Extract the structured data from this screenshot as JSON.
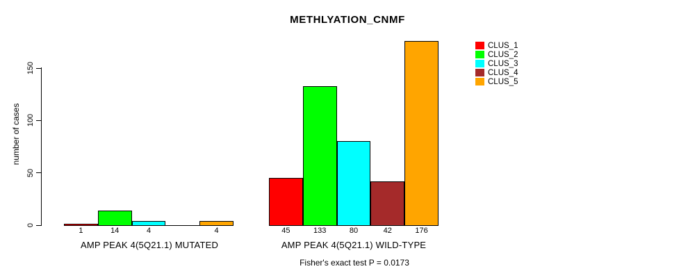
{
  "title": "METHLYATION_CNMF",
  "y_axis": {
    "label": "number of cases",
    "tick_labels": [
      "0",
      "50",
      "100",
      "150"
    ]
  },
  "legend": {
    "entries": [
      {
        "label": "CLUS_1",
        "color": "#FF0000"
      },
      {
        "label": "CLUS_2",
        "color": "#00FF00"
      },
      {
        "label": "CLUS_3",
        "color": "#00FFFF"
      },
      {
        "label": "CLUS_4",
        "color": "#A52A2A"
      },
      {
        "label": "CLUS_5",
        "color": "#FFA500"
      }
    ]
  },
  "footer": "Fisher's exact test P = 0.0173",
  "chart_data": {
    "type": "bar",
    "title": "METHLYATION_CNMF",
    "xlabel": "",
    "ylabel": "number of cases",
    "ylim": [
      0,
      180
    ],
    "yticks": [
      0,
      50,
      100,
      150
    ],
    "grid": false,
    "legend_position": "top-right-outside",
    "series_names": [
      "CLUS_1",
      "CLUS_2",
      "CLUS_3",
      "CLUS_4",
      "CLUS_5"
    ],
    "colors": [
      "#FF0000",
      "#00FF00",
      "#00FFFF",
      "#A52A2A",
      "#FFA500"
    ],
    "groups": [
      {
        "label": "AMP PEAK 4(5Q21.1) MUTATED",
        "values": [
          1,
          14,
          4,
          0,
          4
        ],
        "bar_labels": [
          "1",
          "14",
          "4",
          "",
          "4"
        ]
      },
      {
        "label": "AMP PEAK 4(5Q21.1) WILD-TYPE",
        "values": [
          45,
          133,
          80,
          42,
          176
        ],
        "bar_labels": [
          "45",
          "133",
          "80",
          "42",
          "176"
        ]
      }
    ],
    "annotation": "Fisher's exact test P = 0.0173"
  }
}
